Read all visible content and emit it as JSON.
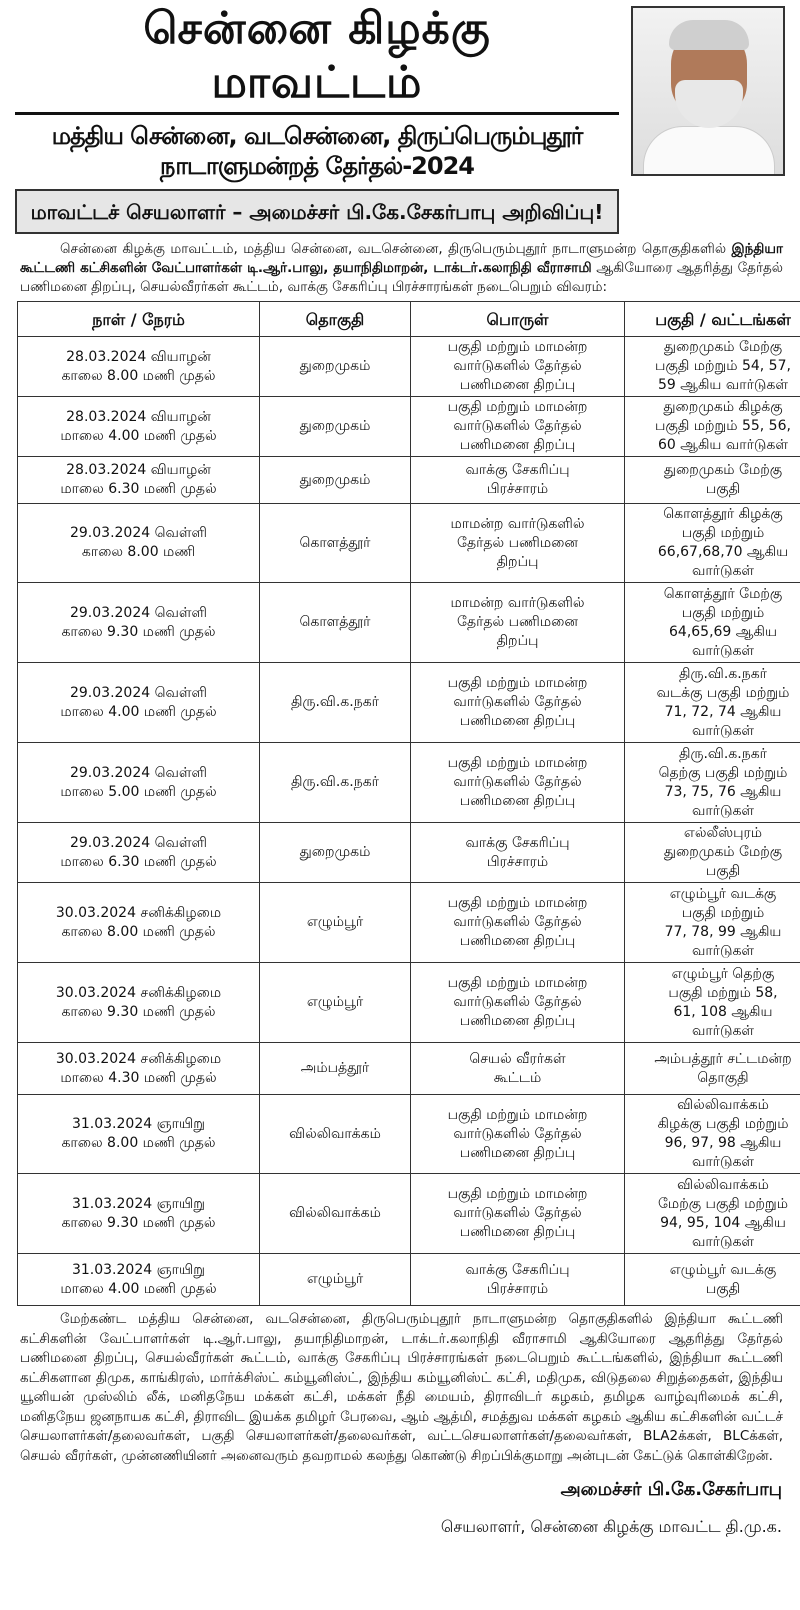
{
  "header": {
    "title": "சென்னை கிழக்கு மாவட்டம்",
    "subtitle": "மத்திய சென்னை, வடசென்னை, திருப்பெரும்புதூர் நாடாளுமன்றத் தேர்தல்-2024",
    "banner": "மாவட்டச் செயலாளர் – அமைச்சர் பி.கே.சேகர்பாபு அறிவிப்பு!"
  },
  "intro": {
    "line1": "சென்னை கிழக்கு மாவட்டம், மத்திய சென்னை, வடசென்னை, திருபெரும்புதூர் நாடாளுமன்ற தொகுதிகளில்",
    "bold1": "இந்தியா கூட்டணி கட்சிகளின் வேட்பாளர்கள் டி.ஆர்.பாலு, தயாநிதிமாறன், டாக்டர்.கலாநிதி வீராசாமி",
    "rest": " ஆகியோரை ஆதரித்து தேர்தல் பணிமனை திறப்பு, செயல்வீரர்கள் கூட்டம், வாக்கு சேகரிப்பு பிரச்சாரங்கள் நடைபெறும் விவரம்:"
  },
  "table": {
    "headers": [
      "நாள் / நேரம்",
      "தொகுதி",
      "பொருள்",
      "பகுதி / வட்டங்கள்"
    ],
    "rows": [
      [
        [
          "28.03.2024 வியாழன்",
          "காலை 8.00 மணி முதல்"
        ],
        [
          "துறைமுகம்"
        ],
        [
          "பகுதி மற்றும் மாமன்ற",
          "வார்டுகளில் தேர்தல்",
          "பணிமனை திறப்பு"
        ],
        [
          "துறைமுகம் மேற்கு",
          "பகுதி மற்றும் 54, 57,",
          "59 ஆகிய வார்டுகள்"
        ]
      ],
      [
        [
          "28.03.2024 வியாழன்",
          "மாலை 4.00 மணி முதல்"
        ],
        [
          "துறைமுகம்"
        ],
        [
          "பகுதி மற்றும் மாமன்ற",
          "வார்டுகளில் தேர்தல்",
          "பணிமனை திறப்பு"
        ],
        [
          "துறைமுகம் கிழக்கு",
          "பகுதி மற்றும் 55, 56,",
          "60 ஆகிய வார்டுகள்"
        ]
      ],
      [
        [
          "28.03.2024 வியாழன்",
          "மாலை 6.30 மணி முதல்"
        ],
        [
          "துறைமுகம்"
        ],
        [
          "வாக்கு சேகரிப்பு",
          "பிரச்சாரம்"
        ],
        [
          "துறைமுகம் மேற்கு",
          "பகுதி"
        ]
      ],
      [
        [
          "29.03.2024 வெள்ளி",
          "காலை 8.00 மணி"
        ],
        [
          "கொளத்தூர்"
        ],
        [
          "மாமன்ற வார்டுகளில்",
          "தேர்தல் பணிமனை",
          "திறப்பு"
        ],
        [
          "கொளத்தூர் கிழக்கு",
          "பகுதி மற்றும்",
          "66,67,68,70 ஆகிய",
          "வார்டுகள்"
        ]
      ],
      [
        [
          "29.03.2024 வெள்ளி",
          "காலை 9.30 மணி முதல்"
        ],
        [
          "கொளத்தூர்"
        ],
        [
          "மாமன்ற வார்டுகளில்",
          "தேர்தல் பணிமனை",
          "திறப்பு"
        ],
        [
          "கொளத்தூர் மேற்கு",
          "பகுதி மற்றும்",
          "64,65,69 ஆகிய",
          "வார்டுகள்"
        ]
      ],
      [
        [
          "29.03.2024 வெள்ளி",
          "மாலை 4.00 மணி முதல்"
        ],
        [
          "திரு.வி.க.நகர்"
        ],
        [
          "பகுதி மற்றும் மாமன்ற",
          "வார்டுகளில் தேர்தல்",
          "பணிமனை திறப்பு"
        ],
        [
          "திரு.வி.க.நகர்",
          "வடக்கு பகுதி மற்றும்",
          "71, 72, 74 ஆகிய",
          "வார்டுகள்"
        ]
      ],
      [
        [
          "29.03.2024 வெள்ளி",
          "மாலை 5.00 மணி முதல்"
        ],
        [
          "திரு.வி.க.நகர்"
        ],
        [
          "பகுதி மற்றும் மாமன்ற",
          "வார்டுகளில் தேர்தல்",
          "பணிமனை திறப்பு"
        ],
        [
          "திரு.வி.க.நகர்",
          "தெற்கு பகுதி மற்றும்",
          "73, 75, 76 ஆகிய",
          "வார்டுகள்"
        ]
      ],
      [
        [
          "29.03.2024 வெள்ளி",
          "மாலை 6.30 மணி முதல்"
        ],
        [
          "துறைமுகம்"
        ],
        [
          "வாக்கு சேகரிப்பு",
          "பிரச்சாரம்"
        ],
        [
          "எல்லீஸ்புரம்",
          "துறைமுகம் மேற்கு",
          "பகுதி"
        ]
      ],
      [
        [
          "30.03.2024 சனிக்கிழமை",
          "காலை 8.00 மணி முதல்"
        ],
        [
          "எழும்பூர்"
        ],
        [
          "பகுதி மற்றும் மாமன்ற",
          "வார்டுகளில் தேர்தல்",
          "பணிமனை திறப்பு"
        ],
        [
          "எழும்பூர் வடக்கு",
          "பகுதி மற்றும்",
          "77, 78, 99 ஆகிய",
          "வார்டுகள்"
        ]
      ],
      [
        [
          "30.03.2024 சனிக்கிழமை",
          "காலை 9.30 மணி முதல்"
        ],
        [
          "எழும்பூர்"
        ],
        [
          "பகுதி மற்றும் மாமன்ற",
          "வார்டுகளில் தேர்தல்",
          "பணிமனை திறப்பு"
        ],
        [
          "எழும்பூர் தெற்கு",
          "பகுதி மற்றும் 58,",
          "61, 108 ஆகிய",
          "வார்டுகள்"
        ]
      ],
      [
        [
          "30.03.2024 சனிக்கிழமை",
          "மாலை 4.30 மணி முதல்"
        ],
        [
          "அம்பத்தூர்"
        ],
        [
          "செயல் வீரர்கள்",
          "கூட்டம்"
        ],
        [
          "அம்பத்தூர் சட்டமன்ற",
          "தொகுதி"
        ]
      ],
      [
        [
          "31.03.2024 ஞாயிறு",
          "காலை 8.00 மணி முதல்"
        ],
        [
          "வில்லிவாக்கம்"
        ],
        [
          "பகுதி மற்றும் மாமன்ற",
          "வார்டுகளில் தேர்தல்",
          "பணிமனை திறப்பு"
        ],
        [
          "வில்லிவாக்கம்",
          "கிழக்கு பகுதி மற்றும்",
          "96, 97, 98 ஆகிய",
          "வார்டுகள்"
        ]
      ],
      [
        [
          "31.03.2024 ஞாயிறு",
          "காலை 9.30 மணி முதல்"
        ],
        [
          "வில்லிவாக்கம்"
        ],
        [
          "பகுதி மற்றும் மாமன்ற",
          "வார்டுகளில் தேர்தல்",
          "பணிமனை திறப்பு"
        ],
        [
          "வில்லிவாக்கம்",
          "மேற்கு பகுதி மற்றும்",
          "94, 95, 104 ஆகிய",
          "வார்டுகள்"
        ]
      ],
      [
        [
          "31.03.2024 ஞாயிறு",
          "மாலை 4.00 மணி முதல்"
        ],
        [
          "எழும்பூர்"
        ],
        [
          "வாக்கு சேகரிப்பு",
          "பிரச்சாரம்"
        ],
        [
          "எழும்பூர் வடக்கு",
          "பகுதி"
        ]
      ]
    ]
  },
  "outro": "மேற்கண்ட மத்திய சென்னை, வடசென்னை, திருபெரும்புதூர் நாடாளுமன்ற தொகுதிகளில் இந்தியா கூட்டணி கட்சிகளின் வேட்பாளர்கள் டி.ஆர்.பாலு, தயாநிதிமாறன், டாக்டர்.கலாநிதி வீராசாமி ஆகியோரை ஆதரித்து தேர்தல் பணிமனை திறப்பு, செயல்வீரர்கள் கூட்டம், வாக்கு சேகரிப்பு பிரச்சாரங்கள் நடைபெறும் கூட்டங்களில், இந்தியா கூட்டணி கட்சிகளான திமுக, காங்கிரஸ், மார்க்சிஸ்ட் கம்யூனிஸ்ட், இந்திய கம்யூனிஸ்ட் கட்சி, மதிமுக, விடுதலை சிறுத்தைகள், இந்திய யூனியன் முஸ்லிம் லீக், மனிதநேய மக்கள் கட்சி, மக்கள் நீதி மையம், திராவிடர் கழகம், தமிழக வாழ்வுரிமைக் கட்சி, மனிதநேய ஜனநாயக கட்சி, திராவிட இயக்க தமிழர் பேரவை, ஆம் ஆத்மி, சமத்துவ மக்கள் கழகம் ஆகிய கட்சிகளின் வட்டச் செயலாளர்கள்/தலைவர்கள், பகுதி செயலாளர்கள்/தலைவர்கள், வட்டசெயலாளர்கள்/தலைவர்கள், BLA2க்கள், BLCக்கள், செயல் வீரர்கள், முன்னணியினர் அனைவரும் தவறாமல் கலந்து கொண்டு சிறப்பிக்குமாறு அன்புடன் கேட்டுக் கொள்கிறேன்.",
  "signature": {
    "name": "அமைச்சர் பி.கே.சேகர்பாபு",
    "role": "செயலாளர், சென்னை கிழக்கு மாவட்ட தி.மு.க."
  }
}
